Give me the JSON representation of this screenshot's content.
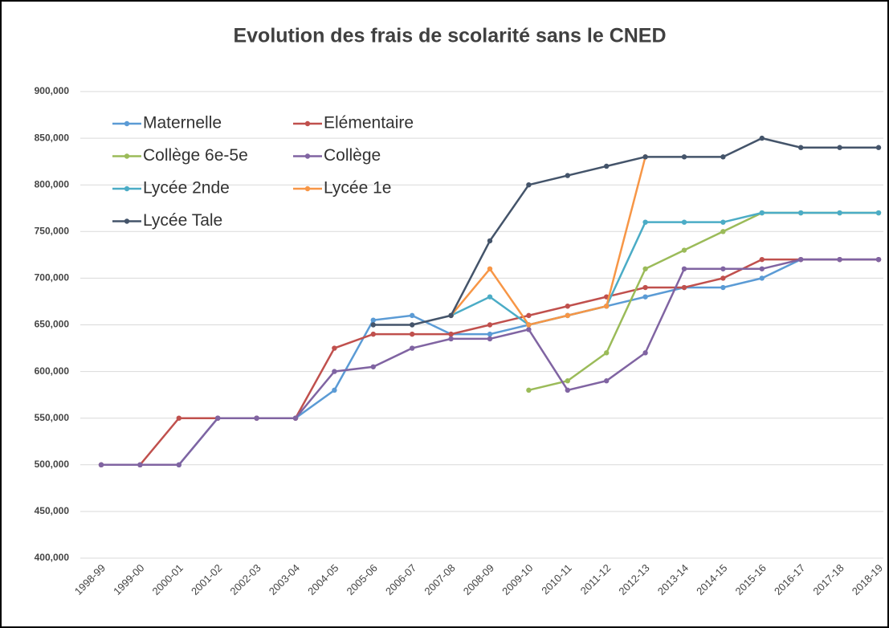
{
  "chart_data": {
    "type": "line",
    "title": "Evolution des frais de scolarité sans le CNED",
    "categories": [
      "1998-99",
      "1999-00",
      "2000-01",
      "2001-02",
      "2002-03",
      "2003-04",
      "2004-05",
      "2005-06",
      "2006-07",
      "2007-08",
      "2008-09",
      "2009-10",
      "2010-11",
      "2011-12",
      "2012-13",
      "2013-14",
      "2014-15",
      "2015-16",
      "2016-17",
      "2017-18",
      "2018-19"
    ],
    "series": [
      {
        "name": "Maternelle",
        "color": "#5b9bd5",
        "values": [
          500000,
          500000,
          500000,
          550000,
          550000,
          550000,
          580000,
          655000,
          660000,
          640000,
          640000,
          650000,
          660000,
          670000,
          680000,
          690000,
          690000,
          700000,
          720000,
          720000,
          720000
        ]
      },
      {
        "name": "Elémentaire",
        "color": "#c0504d",
        "values": [
          500000,
          500000,
          550000,
          550000,
          550000,
          550000,
          625000,
          640000,
          640000,
          640000,
          650000,
          660000,
          670000,
          680000,
          690000,
          690000,
          700000,
          720000,
          720000,
          720000,
          720000
        ]
      },
      {
        "name": "Collège 6e-5e",
        "color": "#9bbb59",
        "values": [
          null,
          null,
          null,
          null,
          null,
          null,
          null,
          null,
          null,
          null,
          null,
          580000,
          590000,
          620000,
          710000,
          730000,
          750000,
          770000,
          770000,
          770000,
          770000
        ]
      },
      {
        "name": "Collège",
        "color": "#8064a2",
        "values": [
          500000,
          500000,
          500000,
          550000,
          550000,
          550000,
          600000,
          605000,
          625000,
          635000,
          635000,
          645000,
          580000,
          590000,
          620000,
          710000,
          710000,
          710000,
          720000,
          720000,
          720000
        ]
      },
      {
        "name": "Lycée 2nde",
        "color": "#4bacc6",
        "values": [
          null,
          null,
          null,
          null,
          null,
          null,
          null,
          null,
          null,
          660000,
          680000,
          650000,
          660000,
          670000,
          760000,
          760000,
          760000,
          770000,
          770000,
          770000,
          770000
        ]
      },
      {
        "name": "Lycée 1e",
        "color": "#f79646",
        "values": [
          null,
          null,
          null,
          null,
          null,
          null,
          null,
          null,
          null,
          660000,
          710000,
          650000,
          660000,
          670000,
          830000,
          null,
          null,
          null,
          null,
          null,
          null
        ]
      },
      {
        "name": "Lycée Tale",
        "color": "#44546a",
        "values": [
          null,
          null,
          null,
          null,
          null,
          null,
          null,
          650000,
          650000,
          660000,
          740000,
          800000,
          810000,
          820000,
          830000,
          830000,
          830000,
          850000,
          840000,
          840000,
          840000
        ]
      }
    ],
    "ylim": [
      400000,
      900000
    ],
    "yticks": [
      {
        "value": 400000,
        "label": "400,000"
      },
      {
        "value": 450000,
        "label": "450,000"
      },
      {
        "value": 500000,
        "label": "500,000"
      },
      {
        "value": 550000,
        "label": "550,000"
      },
      {
        "value": 600000,
        "label": "600,000"
      },
      {
        "value": 650000,
        "label": "650,000"
      },
      {
        "value": 700000,
        "label": "700,000"
      },
      {
        "value": 750000,
        "label": "750,000"
      },
      {
        "value": 800000,
        "label": "800,000"
      },
      {
        "value": 850000,
        "label": "850,000"
      },
      {
        "value": 900000,
        "label": "900,000"
      }
    ],
    "grid": true
  }
}
